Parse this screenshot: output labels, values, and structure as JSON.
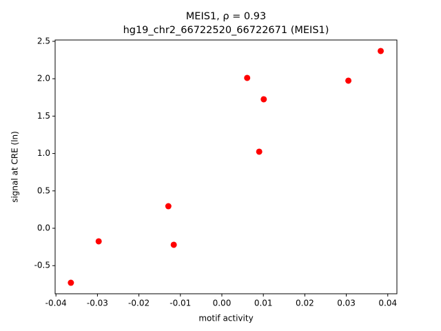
{
  "chart_data": {
    "type": "scatter",
    "title": "MEIS1, ρ = 0.93",
    "subtitle": "hg19_chr2_66722520_66722671 (MEIS1)",
    "x_label": "motif activity",
    "y_label": "signal at CRE (ln)",
    "series": [
      {
        "name": "MEIS1",
        "color": "#ff0000",
        "x": [
          -0.0364,
          -0.0297,
          -0.0129,
          -0.0116,
          0.0061,
          0.009,
          0.0101,
          0.0305,
          0.0383
        ],
        "values": [
          -0.729,
          -0.175,
          0.295,
          -0.221,
          2.011,
          1.024,
          1.725,
          1.974,
          2.371
        ]
      }
    ],
    "xlim": [
      -0.0402,
      0.0422
    ],
    "ylim": [
      -0.876,
      2.518
    ],
    "xticks": [
      -0.04,
      -0.03,
      -0.02,
      -0.01,
      {
        "value": 0,
        "label": "0.00"
      },
      0.01,
      0.02,
      0.03,
      0.04
    ],
    "yticks": [
      -0.5,
      {
        "value": 0,
        "label": "0.0"
      },
      0.5,
      {
        "value": 1,
        "label": "1.0"
      },
      1.5,
      {
        "value": 2,
        "label": "2.0"
      },
      2.5
    ],
    "grid": false
  }
}
